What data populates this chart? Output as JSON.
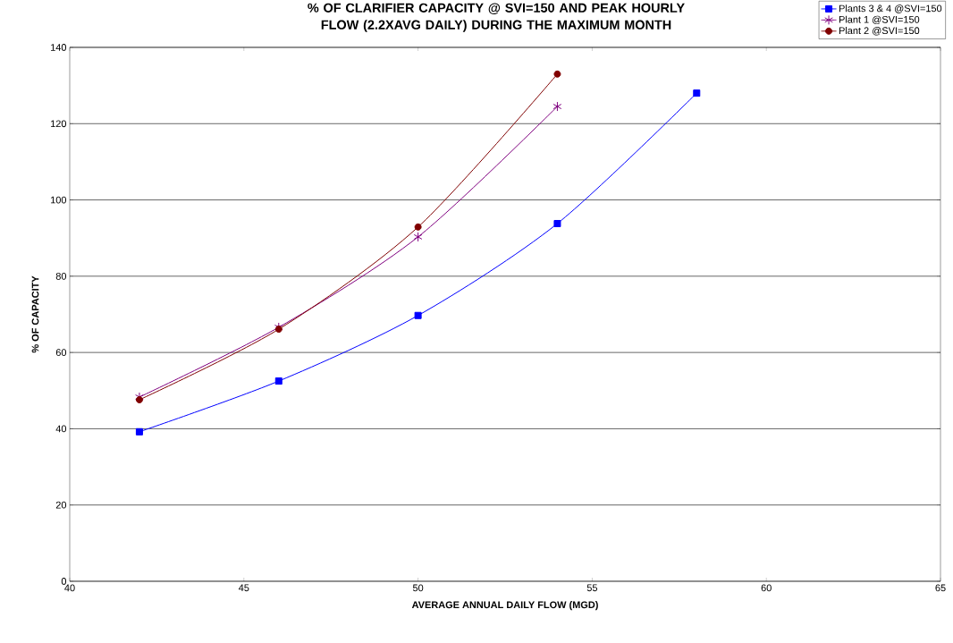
{
  "chart_data": {
    "type": "line",
    "title": "% OF CLARIFIER CAPACITY @ SVI=150 AND PEAK HOURLY FLOW (2.2XAVG DAILY) DURING THE MAXIMUM MONTH",
    "xlabel": "AVERAGE ANNUAL DAILY FLOW (MGD)",
    "ylabel": "% OF CAPACITY",
    "x": [
      42,
      46,
      50,
      54,
      58
    ],
    "series": [
      {
        "name": "Plants 3 & 4 @SVI=150",
        "color": "#0000ff",
        "marker": "square",
        "values": [
          39.2,
          52.5,
          69.7,
          93.8,
          128.0
        ]
      },
      {
        "name": "Plant 1 @SVI=150",
        "color": "#800080",
        "marker": "cross",
        "values": [
          48.3,
          66.6,
          90.3,
          124.5,
          null
        ]
      },
      {
        "name": "Plant 2 @SVI=150",
        "color": "#800000",
        "marker": "circle",
        "values": [
          47.6,
          66.1,
          92.9,
          133.0,
          null
        ]
      }
    ],
    "xlim": [
      40,
      65
    ],
    "xticks": [
      40,
      45,
      50,
      55,
      60,
      65
    ],
    "ylim": [
      0,
      140
    ],
    "yticks": [
      0,
      20,
      40,
      60,
      80,
      100,
      120,
      140
    ],
    "grid": "y",
    "legend": "top right",
    "line_style": "solid"
  }
}
